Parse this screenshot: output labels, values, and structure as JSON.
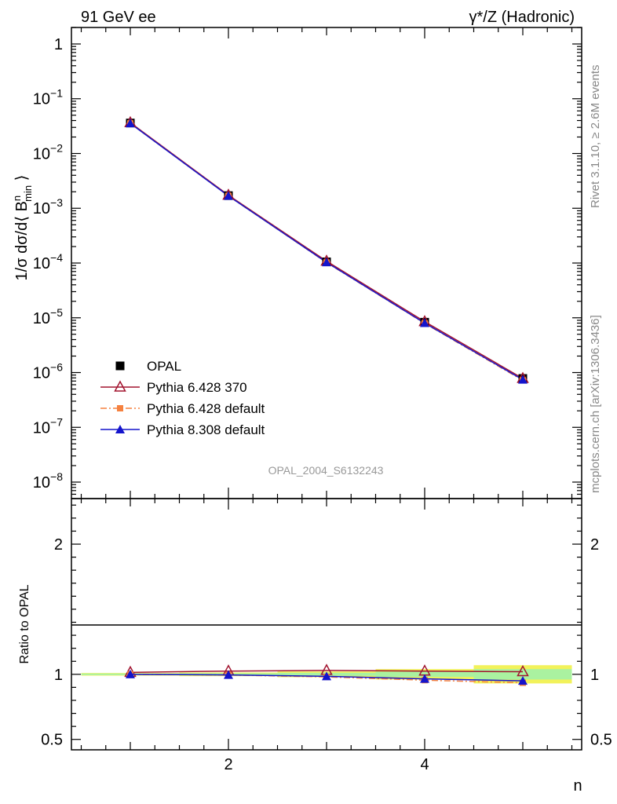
{
  "header": {
    "left": "91 GeV ee",
    "right": "γ*/Z (Hadronic)"
  },
  "side_labels": {
    "rivet": "Rivet 3.1.10, ≥ 2.6M events",
    "mcplots": "mcplots.cern.ch [arXiv:1306.3436]"
  },
  "watermark": "OPAL_2004_S6132243",
  "chart_data": [
    {
      "type": "line",
      "panel": "main",
      "ylabel": "1/σ dσ/d⟨ B^n_min ⟩",
      "yscale": "log",
      "ylim": [
        5e-09,
        2
      ],
      "xlim": [
        0.4,
        5.6
      ],
      "yticks": [
        {
          "value": 1,
          "mant": "1",
          "exp": ""
        },
        {
          "value": 0.1,
          "mant": "10",
          "exp": "−1"
        },
        {
          "value": 0.01,
          "mant": "10",
          "exp": "−2"
        },
        {
          "value": 0.001,
          "mant": "10",
          "exp": "−3"
        },
        {
          "value": 0.0001,
          "mant": "10",
          "exp": "−4"
        },
        {
          "value": 1e-05,
          "mant": "10",
          "exp": "−5"
        },
        {
          "value": 1e-06,
          "mant": "10",
          "exp": "−6"
        },
        {
          "value": 1e-07,
          "mant": "10",
          "exp": "−7"
        },
        {
          "value": 1e-08,
          "mant": "10",
          "exp": "−8"
        }
      ],
      "x": [
        1,
        2,
        3,
        4,
        5
      ],
      "legend_placement": "lower-left",
      "series": [
        {
          "name": "OPAL",
          "style": "data",
          "marker": "square",
          "color": "#000000",
          "values": [
            0.036,
            0.0017,
            0.000105,
            8.3e-06,
            7.8e-07
          ]
        },
        {
          "name": "Pythia 6.428 370",
          "style": "solid",
          "marker": "triangle-open",
          "color": "#a2142f",
          "values": [
            0.0365,
            0.00173,
            0.000108,
            8.5e-06,
            7.8e-07
          ]
        },
        {
          "name": "Pythia 6.428 default",
          "style": "dashdot",
          "marker": "square-small",
          "color": "#f5813f",
          "values": [
            0.0355,
            0.00168,
            0.000102,
            7.9e-06,
            7.2e-07
          ]
        },
        {
          "name": "Pythia 8.308 default",
          "style": "solid",
          "marker": "triangle-filled",
          "color": "#1414cc",
          "values": [
            0.0355,
            0.00168,
            0.000103,
            8e-06,
            7.4e-07
          ]
        }
      ]
    },
    {
      "type": "line",
      "panel": "ratio",
      "ylabel": "Ratio to OPAL",
      "xlabel": "n",
      "ylim": [
        0.42,
        2.35
      ],
      "xlim": [
        0.4,
        5.6
      ],
      "yticks": [
        {
          "value": 0.5,
          "label": "0.5"
        },
        {
          "value": 1,
          "label": "1"
        },
        {
          "value": 2,
          "label": "2"
        }
      ],
      "xticks": [
        {
          "value": 2,
          "label": "2"
        },
        {
          "value": 4,
          "label": "4"
        }
      ],
      "x": [
        1,
        2,
        3,
        4,
        5
      ],
      "uncertainty_band": {
        "stat_color": "#f2f25a",
        "total_color": "#aaf2a0",
        "bins": [
          {
            "x0": 0.5,
            "x1": 1.5,
            "stat": 0.006,
            "total": 0.01
          },
          {
            "x0": 1.5,
            "x1": 2.5,
            "stat": 0.008,
            "total": 0.014
          },
          {
            "x0": 2.5,
            "x1": 3.5,
            "stat": 0.012,
            "total": 0.022
          },
          {
            "x0": 3.5,
            "x1": 4.5,
            "stat": 0.02,
            "total": 0.04
          },
          {
            "x0": 4.5,
            "x1": 5.5,
            "stat": 0.04,
            "total": 0.07
          }
        ]
      },
      "series": [
        {
          "name": "Pythia 6.428 370",
          "color": "#a2142f",
          "style": "solid",
          "marker": "triangle-open",
          "values": [
            1.015,
            1.025,
            1.03,
            1.025,
            1.02
          ]
        },
        {
          "name": "Pythia 6.428 default",
          "color": "#f5813f",
          "style": "dashdot",
          "marker": "square-small",
          "values": [
            1.0,
            0.995,
            0.98,
            0.955,
            0.935
          ]
        },
        {
          "name": "Pythia 8.308 default",
          "color": "#1414cc",
          "style": "solid",
          "marker": "triangle-filled",
          "values": [
            1.0,
            0.995,
            0.985,
            0.965,
            0.95
          ]
        }
      ]
    }
  ]
}
